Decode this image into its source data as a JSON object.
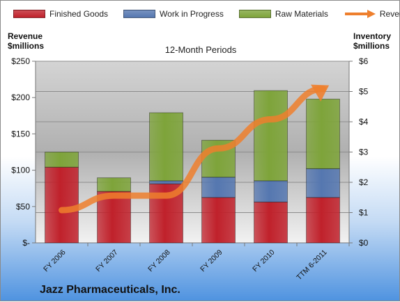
{
  "chart_data": {
    "type": "bar",
    "stacked": true,
    "categories": [
      "FY 2006",
      "FY 2007",
      "FY 2008",
      "FY 2009",
      "FY 2010",
      "TTM 6-2011"
    ],
    "series": [
      {
        "name": "Finished Goods",
        "axis": "right",
        "values": [
          2.5,
          1.7,
          1.95,
          1.5,
          1.35,
          1.5
        ],
        "color": "#c0212b"
      },
      {
        "name": "Work in Progress",
        "axis": "right",
        "values": [
          0.0,
          0.0,
          0.1,
          0.67,
          0.7,
          0.95
        ],
        "color": "#5577b0"
      },
      {
        "name": "Raw Materials",
        "axis": "right",
        "values": [
          0.5,
          0.45,
          2.25,
          1.22,
          2.98,
          2.3
        ],
        "color": "#7ea43a"
      },
      {
        "name": "Revenue",
        "type": "line",
        "axis": "left",
        "values": [
          45,
          65,
          65,
          130,
          170,
          212
        ],
        "color": "#ee7f2d"
      }
    ],
    "subtitle": "12-Month Periods",
    "left_axis": {
      "title": "Revenue\n$millions",
      "ticks": [
        "$-",
        "$50",
        "$100",
        "$150",
        "$200",
        "$250"
      ],
      "range": [
        0,
        250
      ]
    },
    "right_axis": {
      "title": "Inventory\n$millions",
      "ticks": [
        "$0",
        "$1",
        "$2",
        "$3",
        "$4",
        "$5",
        "$6"
      ],
      "range": [
        0,
        6
      ]
    },
    "legend_position": "top",
    "grid": true,
    "company": "Jazz Pharmaceuticals, Inc."
  }
}
